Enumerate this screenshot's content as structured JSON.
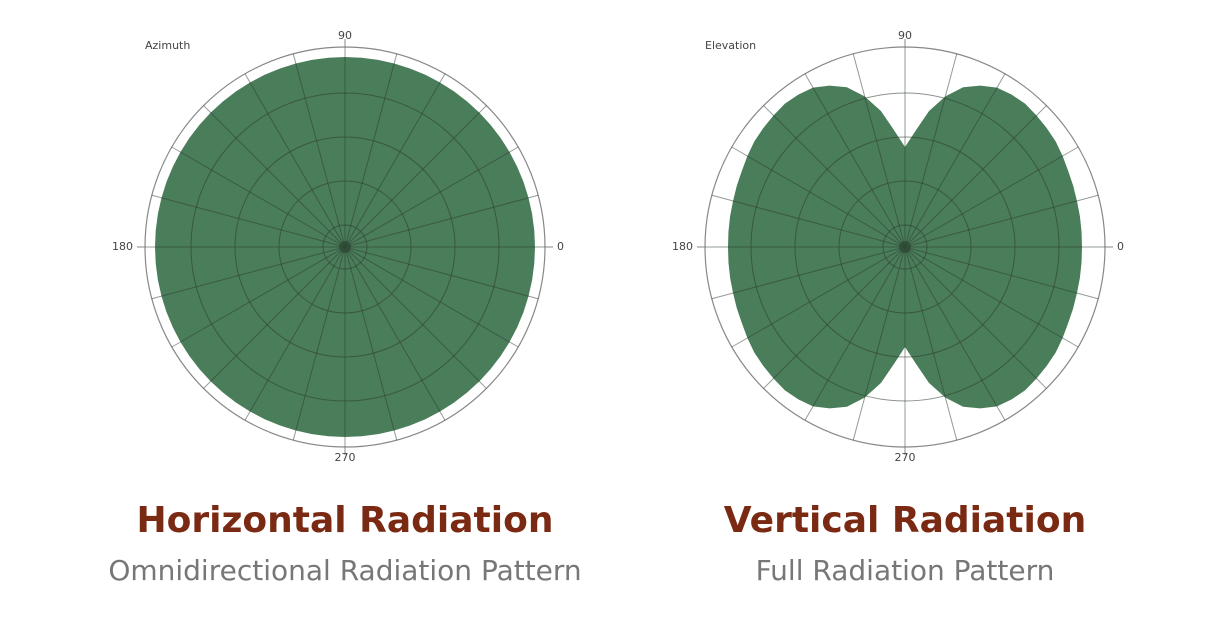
{
  "chart_data": [
    {
      "type": "polar-area",
      "label": "Azimuth",
      "title": "Horizontal Radiation",
      "subtitle": "Omnidirectional Radiation Pattern",
      "color": "#4a7d59",
      "rlim": [
        0,
        1
      ],
      "rgrid": [
        0.11,
        0.33,
        0.55,
        0.77
      ],
      "theta_grid_step": 15,
      "thetaticks": [
        0,
        90,
        180,
        270
      ],
      "theta": [
        0,
        5,
        10,
        15,
        20,
        25,
        30,
        35,
        40,
        45,
        50,
        55,
        60,
        65,
        70,
        75,
        80,
        85,
        90,
        95,
        100,
        105,
        110,
        115,
        120,
        125,
        130,
        135,
        140,
        145,
        150,
        155,
        160,
        165,
        170,
        175,
        180,
        185,
        190,
        195,
        200,
        205,
        210,
        215,
        220,
        225,
        230,
        235,
        240,
        245,
        250,
        255,
        260,
        265,
        270,
        275,
        280,
        285,
        290,
        295,
        300,
        305,
        310,
        315,
        320,
        325,
        330,
        335,
        340,
        345,
        350,
        355
      ],
      "values": [
        0.95,
        0.95,
        0.95,
        0.95,
        0.95,
        0.95,
        0.95,
        0.95,
        0.95,
        0.95,
        0.95,
        0.95,
        0.95,
        0.95,
        0.95,
        0.95,
        0.95,
        0.95,
        0.95,
        0.95,
        0.95,
        0.95,
        0.95,
        0.95,
        0.95,
        0.95,
        0.95,
        0.95,
        0.95,
        0.95,
        0.95,
        0.95,
        0.95,
        0.95,
        0.95,
        0.95,
        0.95,
        0.95,
        0.95,
        0.95,
        0.95,
        0.95,
        0.95,
        0.95,
        0.95,
        0.95,
        0.95,
        0.95,
        0.95,
        0.95,
        0.95,
        0.95,
        0.95,
        0.95,
        0.95,
        0.95,
        0.95,
        0.95,
        0.95,
        0.95,
        0.95,
        0.95,
        0.95,
        0.95,
        0.95,
        0.95,
        0.95,
        0.95,
        0.95,
        0.95,
        0.95,
        0.95
      ]
    },
    {
      "type": "polar-area",
      "label": "Elevation",
      "title": "Vertical Radiation",
      "subtitle": "Full Radiation Pattern",
      "color": "#4a7d59",
      "rlim": [
        0,
        1
      ],
      "rgrid": [
        0.11,
        0.33,
        0.55,
        0.77
      ],
      "theta_grid_step": 15,
      "thetaticks": [
        0,
        90,
        180,
        270
      ],
      "theta": [
        0,
        5,
        10,
        15,
        20,
        25,
        30,
        35,
        40,
        45,
        50,
        55,
        60,
        65,
        70,
        75,
        80,
        85,
        90,
        95,
        100,
        105,
        110,
        115,
        120,
        125,
        130,
        135,
        140,
        145,
        150,
        155,
        160,
        165,
        170,
        175,
        180,
        185,
        190,
        195,
        200,
        205,
        210,
        215,
        220,
        225,
        230,
        235,
        240,
        245,
        250,
        255,
        260,
        265,
        270,
        275,
        280,
        285,
        290,
        295,
        300,
        305,
        310,
        315,
        320,
        325,
        330,
        335,
        340,
        345,
        350,
        355
      ],
      "values": [
        0.885,
        0.886,
        0.888,
        0.89,
        0.895,
        0.9,
        0.91,
        0.92,
        0.925,
        0.93,
        0.935,
        0.93,
        0.92,
        0.89,
        0.85,
        0.78,
        0.69,
        0.58,
        0.5,
        0.58,
        0.69,
        0.78,
        0.85,
        0.89,
        0.92,
        0.93,
        0.935,
        0.93,
        0.925,
        0.92,
        0.91,
        0.9,
        0.895,
        0.89,
        0.888,
        0.886,
        0.885,
        0.886,
        0.888,
        0.89,
        0.895,
        0.9,
        0.91,
        0.92,
        0.925,
        0.93,
        0.935,
        0.93,
        0.92,
        0.89,
        0.85,
        0.78,
        0.69,
        0.58,
        0.5,
        0.58,
        0.69,
        0.78,
        0.85,
        0.89,
        0.92,
        0.93,
        0.935,
        0.93,
        0.925,
        0.92,
        0.91,
        0.9,
        0.895,
        0.89,
        0.888,
        0.886
      ]
    }
  ]
}
